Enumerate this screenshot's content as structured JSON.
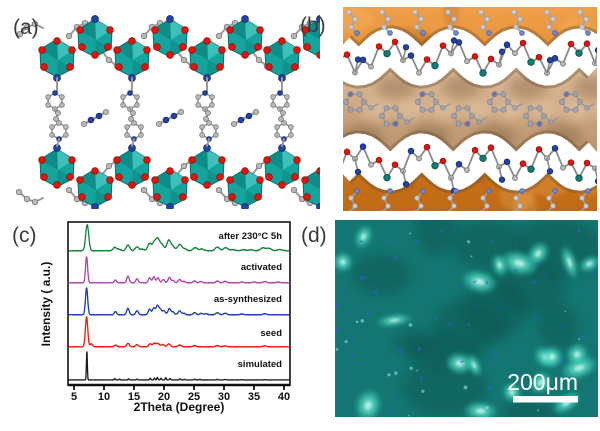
{
  "figure": {
    "panels": [
      {
        "id": "a",
        "label": "(a)"
      },
      {
        "id": "b",
        "label": "(b)"
      },
      {
        "id": "c",
        "label": "(c)"
      },
      {
        "id": "d",
        "label": "(d)"
      }
    ]
  },
  "colors": {
    "polyhedra_teal": "#14a39d",
    "polyhedra_teal_light": "#43c6be",
    "polyhedra_teal_dark": "#0a7f7a",
    "polyhedra_outline": "#076561",
    "oxygen_red": "#e3150b",
    "nitrogen_blue": "#2143a8",
    "carbon_gray": "#b9b9b9",
    "bond_gray": "#9a9a9a",
    "metal_teal": "#0e7e77",
    "surface_orange_light": "#f09c42",
    "surface_orange_dark": "#c06a15",
    "surface_tan_light": "#e2c2a0",
    "surface_tan_dark": "#b5906a",
    "micrograph_teal": "#147672",
    "micrograph_dark": "#0b524e",
    "micrograph_cyan": "#35c9b2",
    "micrograph_cyan_bright": "#7de8d4",
    "micrograph_speck_blue": "#3b5bd8"
  },
  "chart_data": {
    "type": "line",
    "title": "",
    "xlabel": "2Theta (Degree)",
    "ylabel": "Intensity ( a.u.)",
    "xlim": [
      4,
      41
    ],
    "xticks": [
      5,
      10,
      15,
      20,
      25,
      30,
      35,
      40
    ],
    "grid": false,
    "legend_position": "right-of-each-trace",
    "note": "stacked powder XRD patterns, arbitrary intensity offsets, top to bottom",
    "series": [
      {
        "name": "after 230°C 5h",
        "color": "#15803a",
        "peaks": [
          [
            7.2,
            1.0
          ],
          [
            11.8,
            0.13
          ],
          [
            12.5,
            0.06
          ],
          [
            14.0,
            0.22
          ],
          [
            15.5,
            0.15
          ],
          [
            16.4,
            0.06
          ],
          [
            17.6,
            0.28
          ],
          [
            18.4,
            0.32
          ],
          [
            19.0,
            0.42
          ],
          [
            19.7,
            0.22
          ],
          [
            20.8,
            0.4
          ],
          [
            21.5,
            0.15
          ],
          [
            22.6,
            0.24
          ],
          [
            23.4,
            0.08
          ],
          [
            25.2,
            0.12
          ],
          [
            26.3,
            0.07
          ],
          [
            28.9,
            0.14
          ],
          [
            30.3,
            0.12
          ],
          [
            31.5,
            0.04
          ],
          [
            33.2,
            0.04
          ],
          [
            34.5,
            0.04
          ],
          [
            36.5,
            0.11
          ],
          [
            37.5,
            0.09
          ],
          [
            39.3,
            0.05
          ]
        ]
      },
      {
        "name": "activated",
        "color": "#b33fae",
        "peaks": [
          [
            7.1,
            1.0
          ],
          [
            11.9,
            0.11
          ],
          [
            14.0,
            0.26
          ],
          [
            15.5,
            0.16
          ],
          [
            17.6,
            0.19
          ],
          [
            18.3,
            0.23
          ],
          [
            19.0,
            0.19
          ],
          [
            19.9,
            0.13
          ],
          [
            20.9,
            0.21
          ],
          [
            21.5,
            0.09
          ],
          [
            22.6,
            0.13
          ],
          [
            23.3,
            0.06
          ],
          [
            25.1,
            0.07
          ],
          [
            26.2,
            0.05
          ],
          [
            28.9,
            0.07
          ],
          [
            30.2,
            0.06
          ],
          [
            33.0,
            0.03
          ],
          [
            35.0,
            0.03
          ],
          [
            36.8,
            0.05
          ],
          [
            39.0,
            0.03
          ]
        ]
      },
      {
        "name": "as-synthesized",
        "color": "#1c3ab1",
        "peaks": [
          [
            7.1,
            1.0
          ],
          [
            11.9,
            0.12
          ],
          [
            14.0,
            0.24
          ],
          [
            15.5,
            0.15
          ],
          [
            17.6,
            0.21
          ],
          [
            18.3,
            0.25
          ],
          [
            18.9,
            0.33
          ],
          [
            19.4,
            0.19
          ],
          [
            20.0,
            0.15
          ],
          [
            20.9,
            0.23
          ],
          [
            21.5,
            0.1
          ],
          [
            22.6,
            0.15
          ],
          [
            23.3,
            0.06
          ],
          [
            25.1,
            0.08
          ],
          [
            26.2,
            0.05
          ],
          [
            27.0,
            0.04
          ],
          [
            28.9,
            0.08
          ],
          [
            30.2,
            0.06
          ],
          [
            33.0,
            0.03
          ],
          [
            36.8,
            0.04
          ]
        ]
      },
      {
        "name": "seed",
        "color": "#ee1509",
        "peaks": [
          [
            7.1,
            1.0
          ],
          [
            7.9,
            0.1
          ],
          [
            11.9,
            0.06
          ],
          [
            14.0,
            0.12
          ],
          [
            15.5,
            0.07
          ],
          [
            17.7,
            0.1
          ],
          [
            18.4,
            0.12
          ],
          [
            19.0,
            0.11
          ],
          [
            19.8,
            0.08
          ],
          [
            20.8,
            0.1
          ],
          [
            22.6,
            0.06
          ],
          [
            25.1,
            0.04
          ],
          [
            28.9,
            0.04
          ],
          [
            30.2,
            0.03
          ],
          [
            36.8,
            0.03
          ]
        ]
      },
      {
        "name": "simulated",
        "color": "#1a1a1a",
        "peaks": [
          [
            7.15,
            1.0
          ],
          [
            11.8,
            0.05
          ],
          [
            12.6,
            0.03
          ],
          [
            14.1,
            0.04
          ],
          [
            15.5,
            0.03
          ],
          [
            17.7,
            0.06
          ],
          [
            18.4,
            0.07
          ],
          [
            18.9,
            0.09
          ],
          [
            19.5,
            0.06
          ],
          [
            20.3,
            0.08
          ],
          [
            21.0,
            0.05
          ],
          [
            22.7,
            0.04
          ],
          [
            23.4,
            0.02
          ],
          [
            25.1,
            0.03
          ],
          [
            26.0,
            0.02
          ],
          [
            28.9,
            0.02
          ],
          [
            30.2,
            0.02
          ],
          [
            33.0,
            0.01
          ],
          [
            36.8,
            0.01
          ]
        ]
      }
    ]
  },
  "panel_d": {
    "scale_bar_label": "200μm"
  }
}
